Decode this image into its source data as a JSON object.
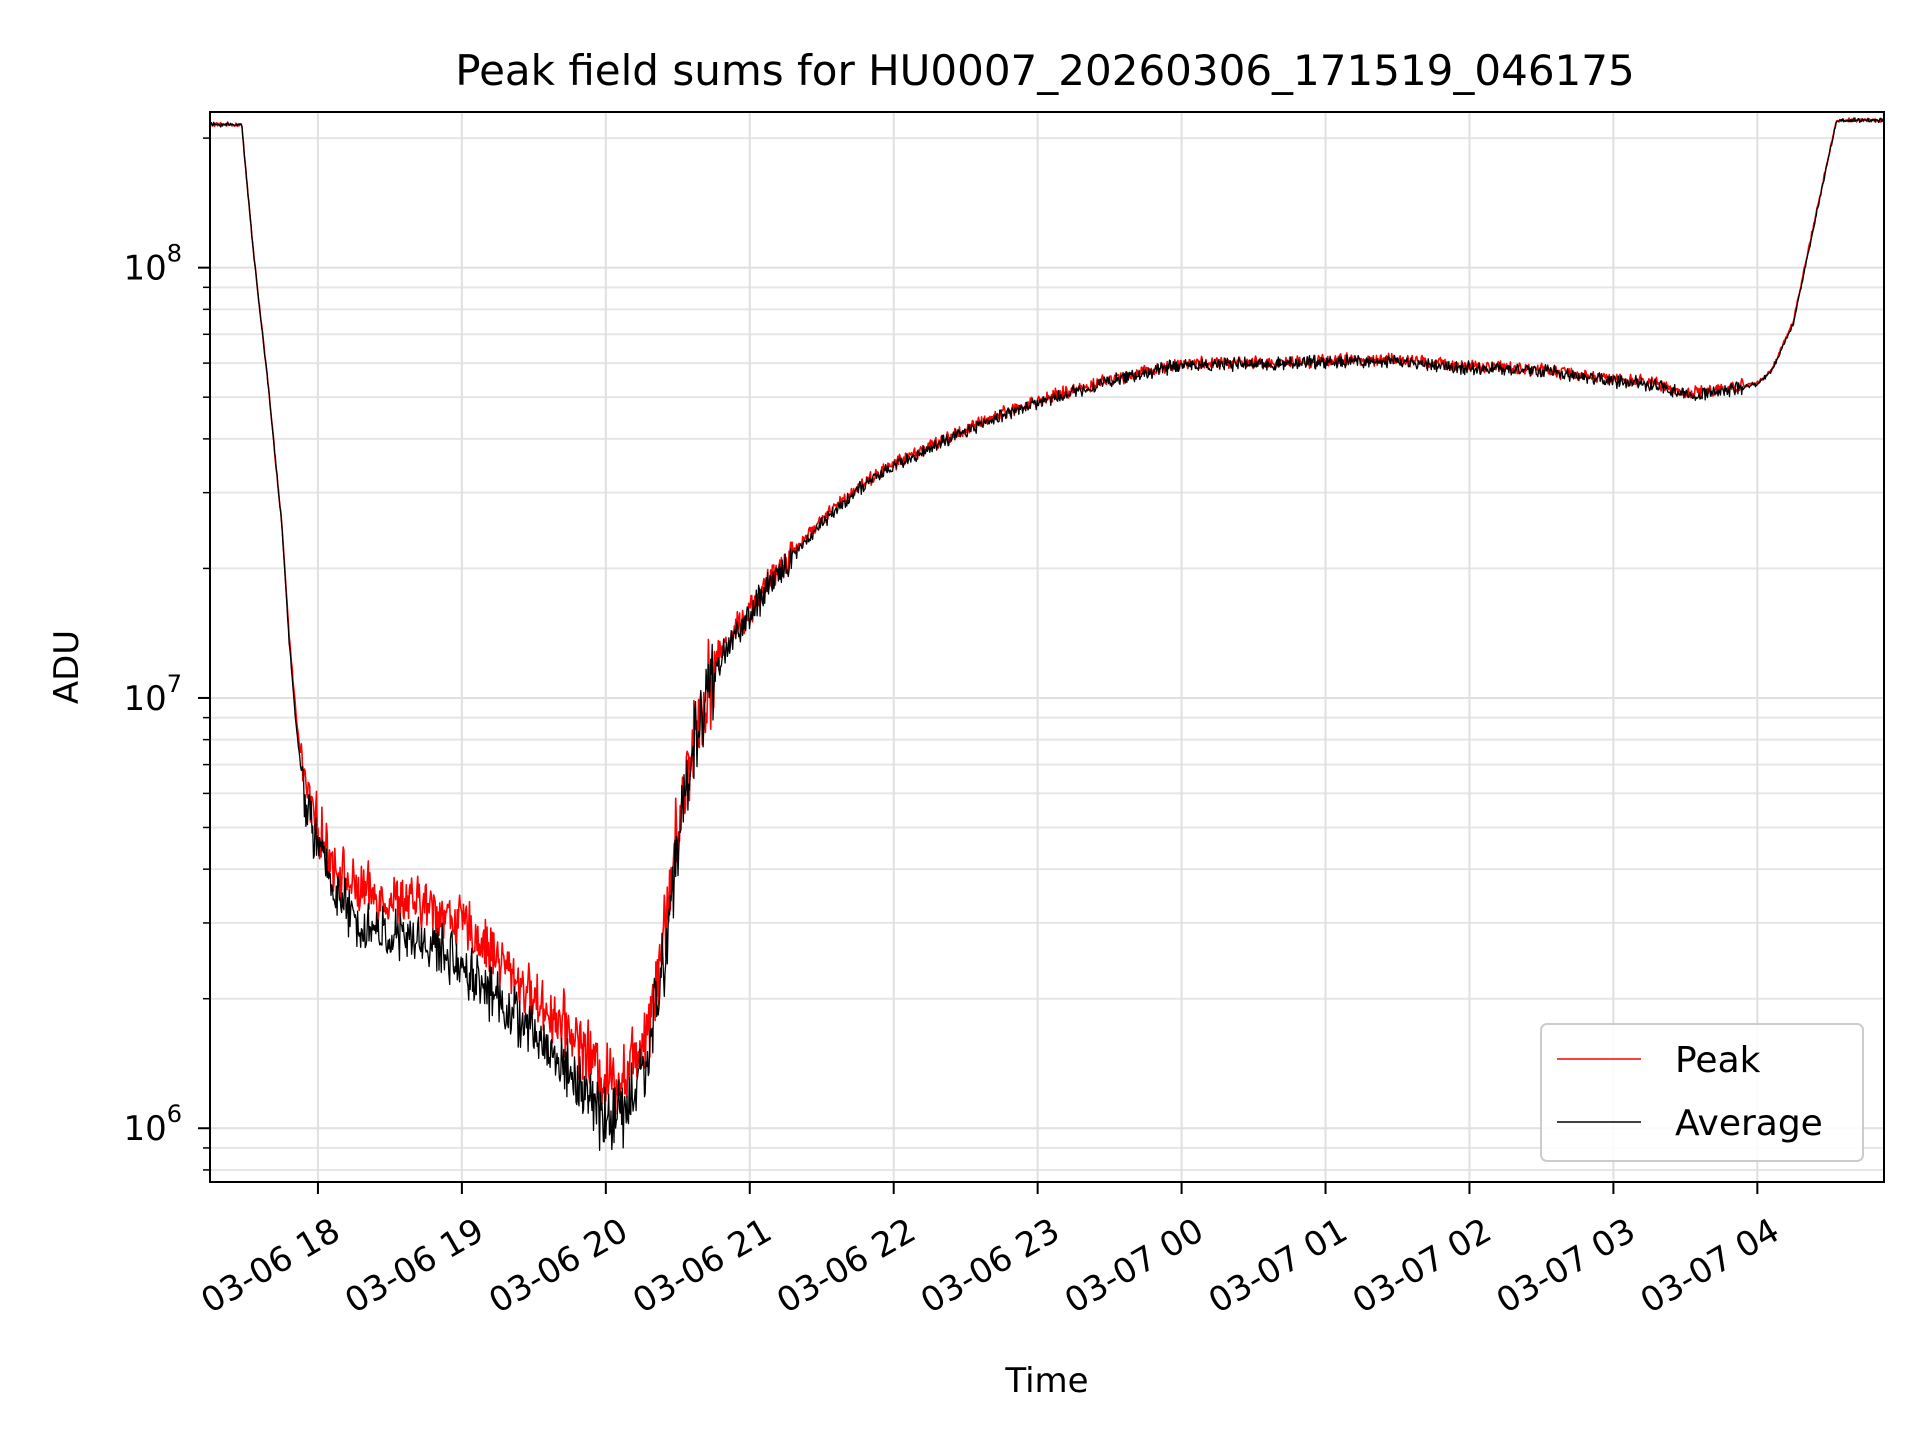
{
  "chart_data": {
    "type": "line",
    "title": "Peak field sums for HU0007_20260306_171519_046175",
    "xlabel": "Time",
    "ylabel": "ADU",
    "yscale": "log",
    "ylim": [
      750000,
      230000000
    ],
    "xlim_hours": [
      17.25,
      28.88
    ],
    "x_ticks": [
      {
        "label": "03-06 18",
        "hour": 18
      },
      {
        "label": "03-06 19",
        "hour": 19
      },
      {
        "label": "03-06 20",
        "hour": 20
      },
      {
        "label": "03-06 21",
        "hour": 21
      },
      {
        "label": "03-06 22",
        "hour": 22
      },
      {
        "label": "03-06 23",
        "hour": 23
      },
      {
        "label": "03-07 00",
        "hour": 24
      },
      {
        "label": "03-07 01",
        "hour": 25
      },
      {
        "label": "03-07 02",
        "hour": 26
      },
      {
        "label": "03-07 03",
        "hour": 27
      },
      {
        "label": "03-07 04",
        "hour": 28
      }
    ],
    "y_ticks": [
      {
        "base": "10",
        "exp": "6",
        "value": 1000000
      },
      {
        "base": "10",
        "exp": "7",
        "value": 10000000
      },
      {
        "base": "10",
        "exp": "8",
        "value": 100000000
      }
    ],
    "grid": true,
    "legend_position": "lower-right",
    "series": [
      {
        "name": "Peak",
        "color": "#ff0000",
        "hours": [
          17.25,
          17.47,
          17.55,
          17.65,
          17.75,
          17.8,
          17.85,
          17.9,
          18.0,
          18.1,
          18.25,
          18.5,
          18.75,
          19.0,
          19.25,
          19.5,
          19.75,
          19.9,
          20.0,
          20.15,
          20.3,
          20.4,
          20.5,
          20.6,
          20.75,
          20.9,
          21.0,
          21.25,
          21.5,
          21.75,
          22.0,
          22.25,
          22.5,
          22.75,
          23.0,
          23.5,
          24.0,
          24.5,
          25.0,
          25.5,
          26.0,
          26.5,
          27.0,
          27.3,
          27.5,
          27.75,
          28.0,
          28.1,
          28.25,
          28.4,
          28.55,
          28.88
        ],
        "values": [
          215000000,
          215000000,
          110000000,
          55000000,
          25000000,
          14000000,
          9000000,
          6500000,
          5000000,
          4200000,
          3600000,
          3400000,
          3300000,
          3000000,
          2500000,
          2000000,
          1700000,
          1450000,
          1300000,
          1350000,
          1800000,
          2800000,
          5000000,
          8000000,
          12000000,
          14500000,
          16000000,
          21000000,
          26000000,
          31000000,
          35000000,
          38500000,
          42000000,
          46000000,
          49000000,
          55000000,
          60000000,
          60000000,
          61000000,
          61000000,
          59000000,
          58000000,
          55000000,
          54000000,
          51000000,
          52000000,
          54000000,
          58000000,
          75000000,
          130000000,
          220000000,
          220000000
        ]
      },
      {
        "name": "Average",
        "color": "#000000",
        "hours": [
          17.25,
          17.47,
          17.55,
          17.65,
          17.75,
          17.8,
          17.85,
          17.9,
          18.0,
          18.1,
          18.25,
          18.5,
          18.75,
          19.0,
          19.25,
          19.5,
          19.75,
          19.9,
          20.0,
          20.15,
          20.3,
          20.4,
          20.5,
          20.6,
          20.75,
          20.9,
          21.0,
          21.25,
          21.5,
          21.75,
          22.0,
          22.25,
          22.5,
          22.75,
          23.0,
          23.5,
          24.0,
          24.5,
          25.0,
          25.5,
          26.0,
          26.5,
          27.0,
          27.3,
          27.5,
          27.75,
          28.0,
          28.1,
          28.25,
          28.4,
          28.55,
          28.88
        ],
        "values": [
          215000000,
          215000000,
          110000000,
          55000000,
          25000000,
          13500000,
          8500000,
          6000000,
          4500000,
          3700000,
          3000000,
          2800000,
          2700000,
          2400000,
          2000000,
          1650000,
          1350000,
          1150000,
          1050000,
          1100000,
          1500000,
          2400000,
          4500000,
          7500000,
          11500000,
          14000000,
          15500000,
          20500000,
          25500000,
          30500000,
          34500000,
          38000000,
          41500000,
          45500000,
          48500000,
          54500000,
          59500000,
          59500000,
          60500000,
          60500000,
          58500000,
          57500000,
          54500000,
          53500000,
          50500000,
          51500000,
          53500000,
          57500000,
          74000000,
          128000000,
          220000000,
          220000000
        ]
      }
    ]
  }
}
